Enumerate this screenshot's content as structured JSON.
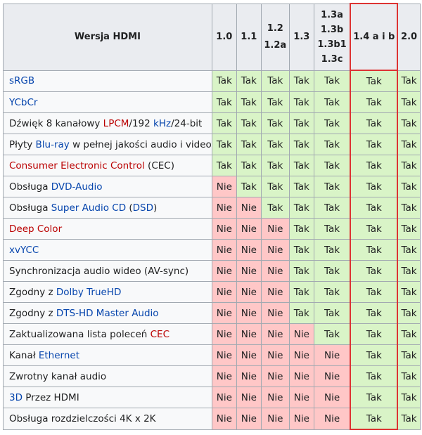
{
  "header": {
    "title": "Wersja HDMI",
    "versions": [
      [
        "1.0"
      ],
      [
        "1.1"
      ],
      [
        "1.2",
        "1.2a"
      ],
      [
        "1.3"
      ],
      [
        "1.3a",
        "1.3b",
        "1.3b1",
        "1.3c"
      ],
      [
        "1.4 a i b"
      ],
      [
        "2.0"
      ]
    ]
  },
  "values": {
    "yes": "Tak",
    "no": "Nie"
  },
  "rows": [
    {
      "parts": [
        {
          "t": "sRGB",
          "c": "blue"
        }
      ],
      "v": [
        1,
        1,
        1,
        1,
        1,
        1,
        1
      ]
    },
    {
      "parts": [
        {
          "t": "YCbCr",
          "c": "blue"
        }
      ],
      "v": [
        1,
        1,
        1,
        1,
        1,
        1,
        1
      ]
    },
    {
      "parts": [
        {
          "t": "Dźwięk 8 kanałowy "
        },
        {
          "t": "LPCM",
          "c": "red"
        },
        {
          "t": "/192 "
        },
        {
          "t": "kHz",
          "c": "blue"
        },
        {
          "t": "/24-bit"
        }
      ],
      "v": [
        1,
        1,
        1,
        1,
        1,
        1,
        1
      ]
    },
    {
      "parts": [
        {
          "t": "Płyty "
        },
        {
          "t": "Blu-ray",
          "c": "blue"
        },
        {
          "t": " w pełnej jakości audio i video"
        }
      ],
      "v": [
        1,
        1,
        1,
        1,
        1,
        1,
        1
      ]
    },
    {
      "parts": [
        {
          "t": "Consumer Electronic Control",
          "c": "red"
        },
        {
          "t": " (CEC)"
        }
      ],
      "v": [
        1,
        1,
        1,
        1,
        1,
        1,
        1
      ]
    },
    {
      "parts": [
        {
          "t": "Obsługa "
        },
        {
          "t": "DVD-Audio",
          "c": "blue"
        }
      ],
      "v": [
        0,
        1,
        1,
        1,
        1,
        1,
        1
      ]
    },
    {
      "parts": [
        {
          "t": "Obsługa "
        },
        {
          "t": "Super Audio CD",
          "c": "blue"
        },
        {
          "t": " ("
        },
        {
          "t": "DSD",
          "c": "blue"
        },
        {
          "t": ")"
        }
      ],
      "v": [
        0,
        0,
        1,
        1,
        1,
        1,
        1
      ]
    },
    {
      "parts": [
        {
          "t": "Deep Color",
          "c": "red"
        }
      ],
      "v": [
        0,
        0,
        0,
        1,
        1,
        1,
        1
      ]
    },
    {
      "parts": [
        {
          "t": "xvYCC",
          "c": "blue"
        }
      ],
      "v": [
        0,
        0,
        0,
        1,
        1,
        1,
        1
      ]
    },
    {
      "parts": [
        {
          "t": "Synchronizacja audio wideo (AV-sync)"
        }
      ],
      "v": [
        0,
        0,
        0,
        1,
        1,
        1,
        1
      ]
    },
    {
      "parts": [
        {
          "t": "Zgodny z "
        },
        {
          "t": "Dolby TrueHD",
          "c": "blue"
        }
      ],
      "v": [
        0,
        0,
        0,
        1,
        1,
        1,
        1
      ]
    },
    {
      "parts": [
        {
          "t": "Zgodny z "
        },
        {
          "t": "DTS-HD Master Audio",
          "c": "blue"
        }
      ],
      "v": [
        0,
        0,
        0,
        1,
        1,
        1,
        1
      ]
    },
    {
      "parts": [
        {
          "t": "Zaktualizowana lista poleceń "
        },
        {
          "t": "CEC",
          "c": "red"
        }
      ],
      "v": [
        0,
        0,
        0,
        0,
        1,
        1,
        1
      ]
    },
    {
      "parts": [
        {
          "t": "Kanał "
        },
        {
          "t": "Ethernet",
          "c": "blue"
        }
      ],
      "v": [
        0,
        0,
        0,
        0,
        0,
        1,
        1
      ]
    },
    {
      "parts": [
        {
          "t": "Zwrotny kanał audio"
        }
      ],
      "v": [
        0,
        0,
        0,
        0,
        0,
        1,
        1
      ]
    },
    {
      "parts": [
        {
          "t": "3D",
          "c": "blue"
        },
        {
          "t": " Przez HDMI"
        }
      ],
      "v": [
        0,
        0,
        0,
        0,
        0,
        1,
        1
      ]
    },
    {
      "parts": [
        {
          "t": "Obsługa rozdzielczości 4K x 2K"
        }
      ],
      "v": [
        0,
        0,
        0,
        0,
        0,
        1,
        1
      ]
    }
  ]
}
